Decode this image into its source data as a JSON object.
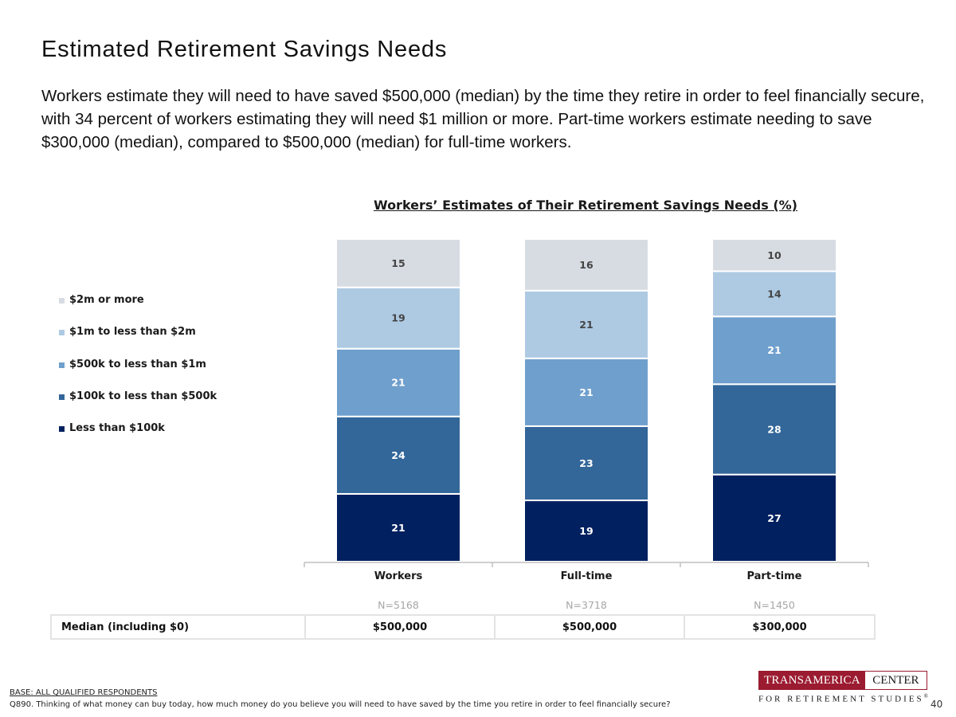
{
  "title": "Estimated Retirement Savings Needs",
  "intro": "Workers estimate they will need to have saved $500,000 (median) by the time they retire in order to feel financially secure, with 34 percent of workers estimating they will need $1 million or more. Part-time workers estimate needing to save $300,000 (median), compared to $500,000 (median) for full-time workers.",
  "chart_data": {
    "type": "bar",
    "stacked": true,
    "title": "Workers’ Estimates of Their Retirement Savings Needs (%)",
    "categories": [
      "Workers",
      "Full-time",
      "Part-time"
    ],
    "series": [
      {
        "name": "Less than $100k",
        "values": [
          21,
          19,
          27
        ],
        "color": "#002060"
      },
      {
        "name": "$100k to less than $500k",
        "values": [
          24,
          23,
          28
        ],
        "color": "#336699"
      },
      {
        "name": "$500k to less than $1m",
        "values": [
          21,
          21,
          21
        ],
        "color": "#6f9fcd"
      },
      {
        "name": "$1m to less than $2m",
        "values": [
          19,
          21,
          14
        ],
        "color": "#aecae3"
      },
      {
        "name": "$2m or more",
        "values": [
          15,
          16,
          10
        ],
        "color": "#d7dce3"
      }
    ],
    "legend_order": [
      4,
      3,
      2,
      1,
      0
    ],
    "legend_position": "left",
    "ylim": [
      0,
      100
    ],
    "grid": false,
    "sample_sizes": [
      "N=5168",
      "N=3718",
      "N=1450"
    ]
  },
  "median_row": {
    "label": "Median (including $0)",
    "values": [
      "$500,000",
      "$500,000",
      "$300,000"
    ]
  },
  "footer": {
    "base": "BASE: ALL QUALIFIED RESPONDENTS",
    "question": "Q890. Thinking of what money can buy today, how much money do you believe you will need to have saved by the time you retire in order to feel financially secure?",
    "page_number": "40"
  },
  "logo": {
    "brand": "TRANSAMERICA",
    "center": "CENTER",
    "sub": "FOR RETIREMENT STUDIES",
    "mark": "®"
  },
  "colors": {
    "axis": "#c0c0c0",
    "sample_size_text": "#a6a6a6",
    "logo_red": "#9b1b30"
  }
}
